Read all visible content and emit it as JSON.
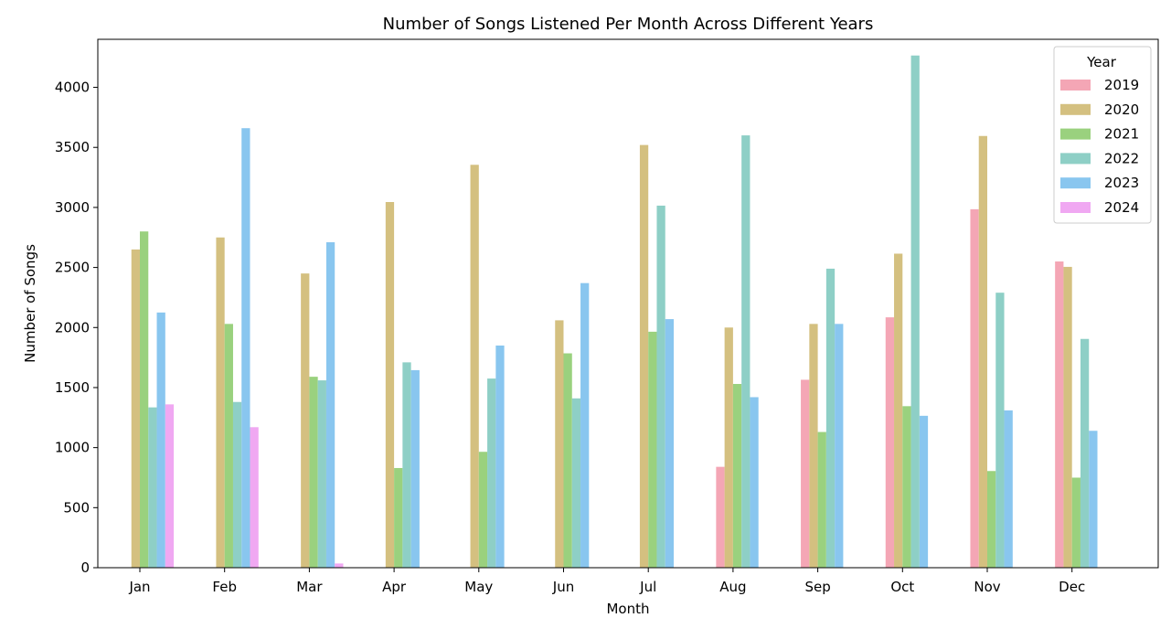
{
  "chart_data": {
    "type": "bar",
    "title": "Number of Songs Listened Per Month Across Different Years",
    "xlabel": "Month",
    "ylabel": "Number of Songs",
    "ylim": [
      0,
      4400
    ],
    "yticks": [
      0,
      500,
      1000,
      1500,
      2000,
      2500,
      3000,
      3500,
      4000
    ],
    "categories": [
      "Jan",
      "Feb",
      "Mar",
      "Apr",
      "May",
      "Jun",
      "Jul",
      "Aug",
      "Sep",
      "Oct",
      "Nov",
      "Dec"
    ],
    "legend": {
      "title": "Year",
      "placement": "top-right"
    },
    "grid": false,
    "series": [
      {
        "name": "2019",
        "color": "#f4a6b5",
        "values": [
          0,
          0,
          0,
          0,
          0,
          0,
          0,
          840,
          1565,
          2085,
          2985,
          2550
        ]
      },
      {
        "name": "2020",
        "color": "#d4c080",
        "values": [
          2650,
          2750,
          2450,
          3045,
          3355,
          2060,
          3520,
          2000,
          2030,
          2615,
          3595,
          2505
        ]
      },
      {
        "name": "2021",
        "color": "#9ad17e",
        "values": [
          2800,
          2030,
          1590,
          830,
          965,
          1785,
          1965,
          1530,
          1130,
          1345,
          805,
          750
        ]
      },
      {
        "name": "2022",
        "color": "#8ecfc6",
        "values": [
          1335,
          1380,
          1560,
          1710,
          1575,
          1410,
          3015,
          3600,
          2490,
          4265,
          2290,
          1905
        ]
      },
      {
        "name": "2023",
        "color": "#89c6ef",
        "values": [
          2125,
          3660,
          2710,
          1645,
          1850,
          2370,
          2070,
          1420,
          2030,
          1265,
          1310,
          1140
        ]
      },
      {
        "name": "2024",
        "color": "#f0a8f2",
        "values": [
          1360,
          1170,
          35,
          0,
          0,
          0,
          0,
          0,
          0,
          0,
          0,
          0
        ]
      }
    ]
  }
}
